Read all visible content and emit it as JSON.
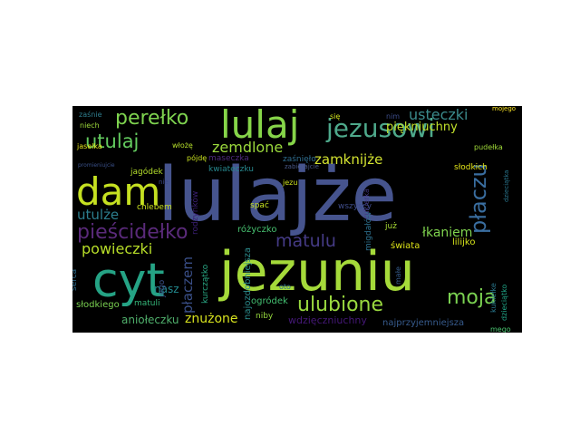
{
  "words": [
    {
      "text": "lulajże",
      "color": "#46548e"
    },
    {
      "text": "jezuniu",
      "color": "#a5da3a"
    },
    {
      "text": "cyt",
      "color": "#25a385"
    },
    {
      "text": "dam",
      "color": "#c5e021"
    },
    {
      "text": "lulaj",
      "color": "#86d549"
    },
    {
      "text": "jezusowi",
      "color": "#4ea98b"
    },
    {
      "text": "perełko",
      "color": "#7ed34f"
    },
    {
      "text": "utulaj",
      "color": "#63cb5f"
    },
    {
      "text": "zemdlone",
      "color": "#9bd93c"
    },
    {
      "text": "usteczki",
      "color": "#3b8b8c"
    },
    {
      "text": "piękniuchny",
      "color": "#c2e22b"
    },
    {
      "text": "zamknijże",
      "color": "#d4e431"
    },
    {
      "text": "płaczu",
      "color": "#3a6ea0"
    },
    {
      "text": "pieścidełko",
      "color": "#5a2a7a"
    },
    {
      "text": "matulu",
      "color": "#453b86"
    },
    {
      "text": "łkaniem",
      "color": "#7fd34e"
    },
    {
      "text": "utulże",
      "color": "#2c7e8e"
    },
    {
      "text": "powieczki",
      "color": "#b8de29"
    },
    {
      "text": "płaczem",
      "color": "#3a4f88"
    },
    {
      "text": "ulubione",
      "color": "#9ad93f"
    },
    {
      "text": "moja",
      "color": "#7ad151"
    },
    {
      "text": "nasz",
      "color": "#23898e"
    },
    {
      "text": "aniołeczku",
      "color": "#50b06c"
    },
    {
      "text": "znużone",
      "color": "#d7e21e"
    },
    {
      "text": "wdzięczniuchny",
      "color": "#451877"
    },
    {
      "text": "najprzyjemniejsza",
      "color": "#375b8d"
    },
    {
      "text": "słodkiego",
      "color": "#7ad151"
    },
    {
      "text": "ogródek",
      "color": "#43bf71"
    },
    {
      "text": "niby",
      "color": "#96d83d"
    },
    {
      "text": "najozdobniejsza",
      "color": "#2b8b8c"
    },
    {
      "text": "różyczko",
      "color": "#46c06f"
    },
    {
      "text": "spać",
      "color": "#c4e021"
    },
    {
      "text": "chlebem",
      "color": "#c8e020"
    },
    {
      "text": "jagódek",
      "color": "#b4de2c"
    },
    {
      "text": "kwiateczku",
      "color": "#27888e"
    },
    {
      "text": "maseczka",
      "color": "#4e2a7d"
    },
    {
      "text": "zaśnięło",
      "color": "#2f6d8e"
    },
    {
      "text": "rodzynków",
      "color": "#3b1f74"
    },
    {
      "text": "kurczątko",
      "color": "#29a884"
    },
    {
      "text": "matuli",
      "color": "#35b779"
    },
    {
      "text": "serca",
      "color": "#2e6d8e"
    },
    {
      "text": "jego",
      "color": "#3b508a"
    },
    {
      "text": "pójdę",
      "color": "#c8e020"
    },
    {
      "text": "włożę",
      "color": "#b5de2b"
    },
    {
      "text": "jaselka",
      "color": "#e4e419"
    },
    {
      "text": "niech",
      "color": "#9dd93b"
    },
    {
      "text": "zaśnie",
      "color": "#2f7e8e"
    },
    {
      "text": "się",
      "color": "#d2e21b"
    },
    {
      "text": "nim",
      "color": "#3d4d8a"
    },
    {
      "text": "mojego",
      "color": "#fde725"
    },
    {
      "text": "pudełka",
      "color": "#a0da39"
    },
    {
      "text": "słodkich",
      "color": "#e2e418"
    },
    {
      "text": "dzieciątka",
      "color": "#2a768e"
    },
    {
      "text": "kukiełke",
      "color": "#29788e"
    },
    {
      "text": "dzieciątko",
      "color": "#20a486"
    },
    {
      "text": "lilijko",
      "color": "#d5e21a"
    },
    {
      "text": "świata",
      "color": "#dde318"
    },
    {
      "text": "migdałów",
      "color": "#2d708e"
    },
    {
      "text": "cukierka",
      "color": "#443983"
    },
    {
      "text": "już",
      "color": "#a8db34"
    },
    {
      "text": "wszyscy",
      "color": "#3e4c8a"
    },
    {
      "text": "mego",
      "color": "#48c16e"
    },
    {
      "text": "małe",
      "color": "#365d8d"
    },
    {
      "text": "jezu",
      "color": "#cde11d"
    },
    {
      "text": "zabierajcie",
      "color": "#4a5a8a"
    },
    {
      "text": "nie",
      "color": "#3e4a89"
    },
    {
      "text": "promieniujcie",
      "color": "#3b528b"
    },
    {
      "text": "oto",
      "color": "#2c718e"
    }
  ]
}
